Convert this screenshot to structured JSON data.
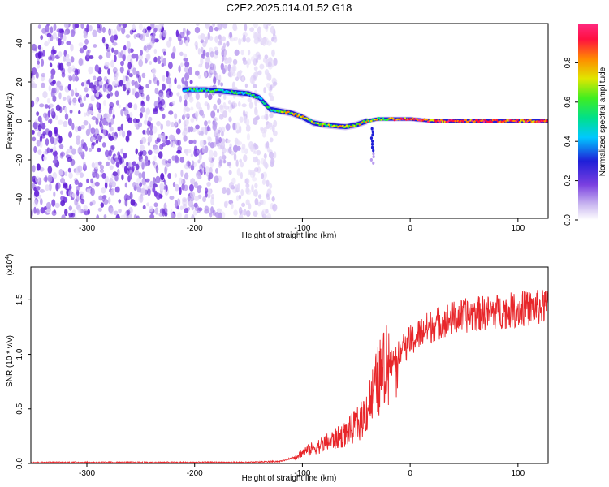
{
  "figure": {
    "title": "C2E2.2025.014.01.52.G18"
  },
  "colors": {
    "snr_line": "#e8262a",
    "axis": "#000000",
    "background": "#ffffff"
  },
  "chart_data": [
    {
      "type": "heatmap",
      "title": "C2E2.2025.014.01.52.G18",
      "xlabel": "Height of straight line (km)",
      "ylabel": "Frequency (Hz)",
      "xlim": [
        -352,
        128
      ],
      "ylim": [
        -50,
        50
      ],
      "xticks": [
        -300,
        -200,
        -100,
        0,
        100
      ],
      "xtick_labels": [
        "-300",
        "-200",
        "-100",
        "0",
        "100"
      ],
      "yticks": [
        -40,
        -20,
        0,
        20,
        40
      ],
      "ytick_labels": [
        "-40",
        "-20",
        "0",
        "20",
        "40"
      ],
      "colorbar": {
        "label": "Normalized spectral amplitude",
        "range": [
          0,
          1
        ],
        "ticks": [
          0.0,
          0.2,
          0.4,
          0.6,
          0.8
        ],
        "tick_labels": [
          "0.0",
          "0.2",
          "0.4",
          "0.6",
          "0.8"
        ],
        "colormap": [
          "#ffffff",
          "#c9b6f0",
          "#7a3fe0",
          "#1f1fd8",
          "#00c8ff",
          "#00e08a",
          "#40ee20",
          "#e0e600",
          "#ff8a00",
          "#ff1040",
          "#ff2a80"
        ]
      },
      "tone_track": [
        {
          "x": -210,
          "y": 16
        },
        {
          "x": -190,
          "y": 16
        },
        {
          "x": -170,
          "y": 15
        },
        {
          "x": -150,
          "y": 14
        },
        {
          "x": -140,
          "y": 12
        },
        {
          "x": -130,
          "y": 6
        },
        {
          "x": -110,
          "y": 4
        },
        {
          "x": -100,
          "y": 2
        },
        {
          "x": -90,
          "y": -1
        },
        {
          "x": -80,
          "y": -2
        },
        {
          "x": -60,
          "y": -3
        },
        {
          "x": -50,
          "y": -2
        },
        {
          "x": -40,
          "y": 0
        },
        {
          "x": -30,
          "y": 1
        },
        {
          "x": -20,
          "y": 1
        },
        {
          "x": 0,
          "y": 1
        },
        {
          "x": 20,
          "y": 0
        },
        {
          "x": 50,
          "y": 0
        },
        {
          "x": 80,
          "y": 0
        },
        {
          "x": 110,
          "y": 0
        },
        {
          "x": 128,
          "y": 0
        }
      ],
      "noise_region": {
        "x_from": -352,
        "x_to": -125
      }
    },
    {
      "type": "line",
      "xlabel": "Height of straight line (km)",
      "ylabel": "SNR (10 * v/v)",
      "y_multiplier_label": "(x10",
      "y_multiplier_exp": "4",
      "y_multiplier_close": ")",
      "xlim": [
        -352,
        128
      ],
      "ylim": [
        0,
        1.8
      ],
      "xticks": [
        -300,
        -200,
        -100,
        0,
        100
      ],
      "xtick_labels": [
        "-300",
        "-200",
        "-100",
        "0",
        "100"
      ],
      "yticks": [
        0.0,
        0.5,
        1.0,
        1.5
      ],
      "ytick_labels": [
        "0.0",
        "0.5",
        "1.0",
        "1.5"
      ],
      "series": [
        {
          "x": [
            -352,
            -300,
            -250,
            -200,
            -150,
            -120,
            -110,
            -100,
            -90,
            -80,
            -70,
            -60,
            -50,
            -45,
            -40,
            -35,
            -30,
            -25,
            -20,
            -15,
            -10,
            -5,
            0,
            5,
            10,
            20,
            30,
            40,
            50,
            60,
            70,
            80,
            90,
            100,
            110,
            120,
            128
          ],
          "y": [
            0.01,
            0.01,
            0.01,
            0.01,
            0.01,
            0.02,
            0.05,
            0.1,
            0.14,
            0.18,
            0.22,
            0.27,
            0.35,
            0.4,
            0.5,
            0.62,
            0.75,
            0.85,
            0.9,
            0.95,
            1.02,
            1.08,
            1.12,
            1.15,
            1.2,
            1.26,
            1.3,
            1.33,
            1.35,
            1.37,
            1.38,
            1.39,
            1.4,
            1.41,
            1.42,
            1.43,
            1.44
          ]
        }
      ]
    }
  ]
}
